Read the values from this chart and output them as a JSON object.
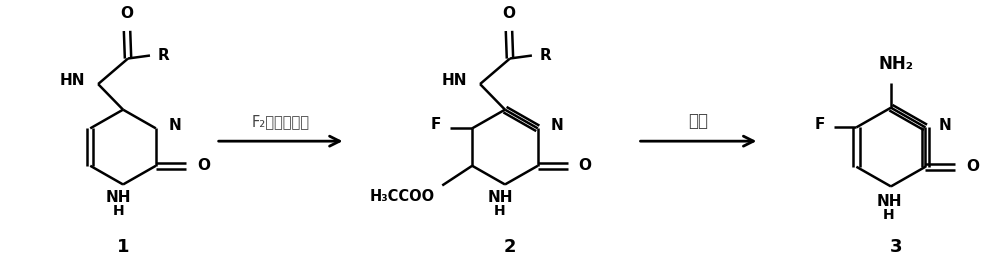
{
  "figure_width": 10.0,
  "figure_height": 2.6,
  "dpi": 100,
  "bg_color": "#ffffff",
  "line_color": "#000000",
  "line_width": 1.8,
  "arrow1_label_line1": "F₂，有机羚酸",
  "arrow2_label": "液氨",
  "compound1_label": "1",
  "compound2_label": "2",
  "compound3_label": "3",
  "text_fontsize": 11,
  "label_fontsize": 13
}
